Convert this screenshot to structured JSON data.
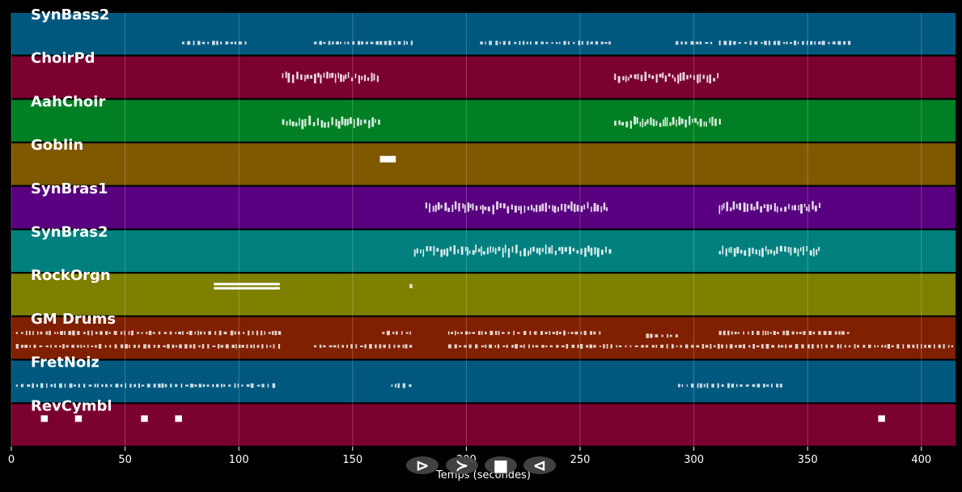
{
  "chart_data": {
    "type": "piano-roll",
    "title": "",
    "xlabel": "Temps (secondes)",
    "ylabel": "",
    "xlim": [
      0,
      415
    ],
    "xticks": [
      0,
      50,
      100,
      150,
      200,
      250,
      300,
      350,
      400
    ],
    "grid": true,
    "background": "#000000",
    "tracks": [
      {
        "name": "SynBass2",
        "color": "#00587f",
        "notes": [
          [
            75,
            104,
            0.72,
            "dots"
          ],
          [
            133,
            176,
            0.72,
            "dots"
          ],
          [
            206,
            264,
            0.72,
            "dots"
          ],
          [
            292,
            308,
            0.72,
            "dots"
          ],
          [
            311,
            369,
            0.72,
            "dots"
          ]
        ]
      },
      {
        "name": "ChoirPd",
        "color": "#7a0030",
        "notes": [
          [
            119,
            162,
            0.5,
            "dense"
          ],
          [
            265,
            311,
            0.5,
            "dense"
          ]
        ]
      },
      {
        "name": "AahChoir",
        "color": "#007f24",
        "notes": [
          [
            119,
            162,
            0.55,
            "dense"
          ],
          [
            265,
            311,
            0.55,
            "dense"
          ]
        ]
      },
      {
        "name": "Goblin",
        "color": "#7f5800",
        "notes": [
          [
            162,
            169,
            0.38,
            "block"
          ]
        ]
      },
      {
        "name": "SynBras1",
        "color": "#58007f",
        "notes": [
          [
            182,
            205,
            0.5,
            "dense"
          ],
          [
            206,
            262,
            0.5,
            "dense"
          ],
          [
            311,
            355,
            0.5,
            "dense"
          ]
        ]
      },
      {
        "name": "SynBras2",
        "color": "#007f7f",
        "notes": [
          [
            177,
            264,
            0.5,
            "dense"
          ],
          [
            311,
            355,
            0.5,
            "dense"
          ]
        ]
      },
      {
        "name": "RockOrgn",
        "color": "#7f7f00",
        "notes": [
          [
            89,
            118,
            0.25,
            "long"
          ],
          [
            89,
            118,
            0.35,
            "long"
          ],
          [
            175,
            176,
            0.3,
            "dots"
          ]
        ]
      },
      {
        "name": "GM Drums",
        "color": "#7f2000",
        "notes": [
          [
            2,
            118,
            0.38,
            "dots"
          ],
          [
            2,
            118,
            0.7,
            "dots"
          ],
          [
            163,
            176,
            0.38,
            "dots"
          ],
          [
            133,
            176,
            0.7,
            "dots"
          ],
          [
            192,
            260,
            0.38,
            "dots"
          ],
          [
            192,
            260,
            0.7,
            "dots"
          ],
          [
            279,
            293,
            0.45,
            "dots"
          ],
          [
            311,
            368,
            0.38,
            "dots"
          ],
          [
            260,
            415,
            0.7,
            "dots"
          ]
        ]
      },
      {
        "name": "FretNoiz",
        "color": "#00587f",
        "notes": [
          [
            2,
            115,
            0.6,
            "dots"
          ],
          [
            167,
            176,
            0.6,
            "dots"
          ],
          [
            293,
            340,
            0.6,
            "dots"
          ]
        ]
      },
      {
        "name": "RevCymbl",
        "color": "#7a0030",
        "notes": [
          [
            13,
            16,
            0.35,
            "block"
          ],
          [
            28,
            31,
            0.35,
            "block"
          ],
          [
            57,
            60,
            0.35,
            "block"
          ],
          [
            72,
            75,
            0.35,
            "block"
          ],
          [
            381,
            384,
            0.35,
            "block"
          ]
        ]
      }
    ]
  },
  "controls": [
    {
      "name": "play-icon",
      "label": "⊳"
    },
    {
      "name": "forward-icon",
      "label": "≻"
    },
    {
      "name": "stop-icon",
      "label": "■"
    },
    {
      "name": "back-icon",
      "label": "⊲"
    }
  ]
}
